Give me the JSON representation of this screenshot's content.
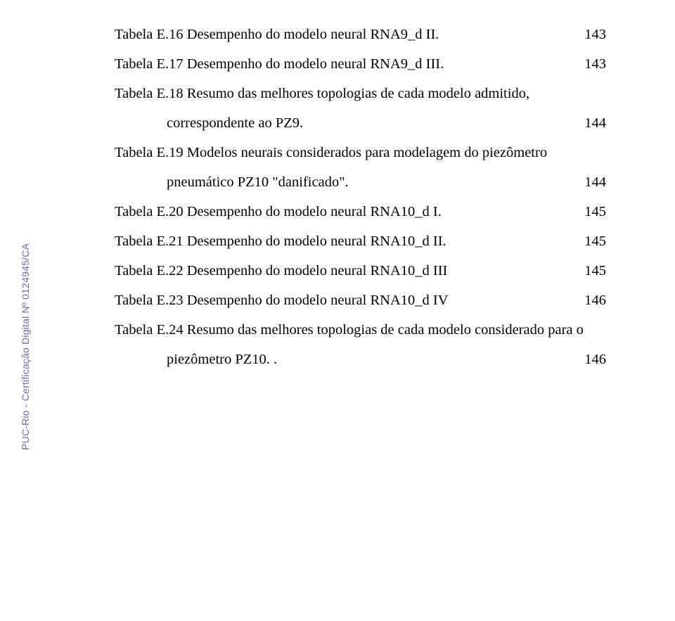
{
  "entries": [
    {
      "text": "Tabela E.16 Desempenho do modelo neural RNA9_d II.",
      "page": "143",
      "indented": false
    },
    {
      "text": "Tabela E.17 Desempenho do modelo neural RNA9_d III.",
      "page": "143",
      "indented": false
    },
    {
      "text": "Tabela E.18 Resumo das melhores topologias de cada modelo admitido,",
      "page": "",
      "indented": false
    },
    {
      "text": "correspondente ao PZ9.",
      "page": "144",
      "indented": true
    },
    {
      "text": "Tabela E.19 Modelos neurais considerados para modelagem do piezômetro",
      "page": "",
      "indented": false
    },
    {
      "text": "pneumático PZ10 \"danificado\".",
      "page": "144",
      "indented": true
    },
    {
      "text": "Tabela E.20 Desempenho do modelo neural RNA10_d I.",
      "page": "145",
      "indented": false
    },
    {
      "text": "Tabela E.21 Desempenho do modelo neural RNA10_d II.",
      "page": "145",
      "indented": false
    },
    {
      "text": "Tabela E.22 Desempenho do modelo neural RNA10_d III",
      "page": "145",
      "indented": false
    },
    {
      "text": "Tabela E.23 Desempenho do modelo neural RNA10_d IV",
      "page": "146",
      "indented": false
    },
    {
      "text": "Tabela E.24 Resumo das melhores topologias de cada modelo considerado para o",
      "page": "",
      "indented": false
    },
    {
      "text": "piezômetro PZ10. .",
      "page": "146",
      "indented": true
    }
  ],
  "watermark": "PUC-Rio - Certificação Digital Nº 0124945/CA"
}
